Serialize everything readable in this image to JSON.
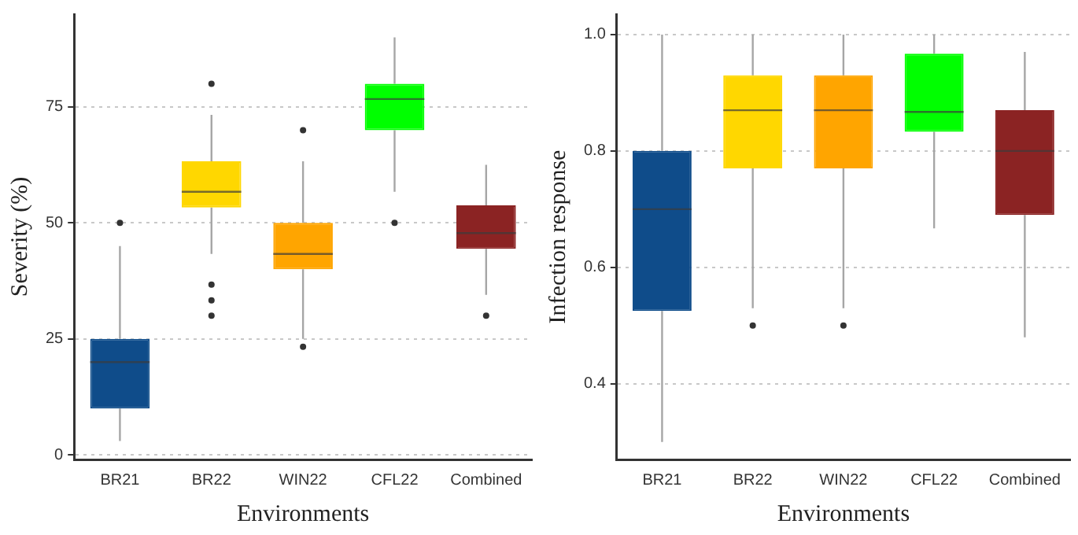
{
  "chart_data": [
    {
      "type": "box",
      "xlabel": "Environments",
      "ylabel": "Severity (%)",
      "categories": [
        "BR21",
        "BR22",
        "WIN22",
        "CFL22",
        "Combined"
      ],
      "colors": [
        "#0f4c8a",
        "#ffd700",
        "#ffa500",
        "#00ff00",
        "#8b2323"
      ],
      "ylim": [
        -1,
        95
      ],
      "yticks": [
        0,
        25,
        50,
        75
      ],
      "grid": "y",
      "legend": false,
      "boxes": [
        {
          "low": 3,
          "q1": 10,
          "median": 20,
          "q3": 25,
          "high": 45,
          "outliers": [
            50
          ]
        },
        {
          "low": 43.3,
          "q1": 53.3,
          "median": 56.7,
          "q3": 63.3,
          "high": 73.3,
          "outliers": [
            80,
            36.7,
            33.3,
            30
          ]
        },
        {
          "low": 25,
          "q1": 40,
          "median": 43.3,
          "q3": 50,
          "high": 63.3,
          "outliers": [
            70,
            23.3
          ]
        },
        {
          "low": 56.7,
          "q1": 70,
          "median": 76.7,
          "q3": 80,
          "high": 90,
          "outliers": [
            50
          ]
        },
        {
          "low": 34.5,
          "q1": 44.4,
          "median": 47.8,
          "q3": 53.8,
          "high": 62.5,
          "outliers": [
            30
          ]
        }
      ]
    },
    {
      "type": "box",
      "xlabel": "Environments",
      "ylabel": "Infection response",
      "categories": [
        "BR21",
        "BR22",
        "WIN22",
        "CFL22",
        "Combined"
      ],
      "colors": [
        "#0f4c8a",
        "#ffd700",
        "#ffa500",
        "#00ff00",
        "#8b2323"
      ],
      "ylim": [
        0.27,
        1.035
      ],
      "yticks": [
        0.4,
        0.6,
        0.8,
        {
          "value": 1.0,
          "label": "1.0"
        }
      ],
      "grid": "y",
      "legend": false,
      "boxes": [
        {
          "low": 0.3,
          "q1": 0.525,
          "median": 0.7,
          "q3": 0.8,
          "high": 1.0
        },
        {
          "low": 0.53,
          "q1": 0.77,
          "median": 0.87,
          "q3": 0.93,
          "high": 1.0,
          "outliers": [
            0.5
          ]
        },
        {
          "low": 0.53,
          "q1": 0.77,
          "median": 0.87,
          "q3": 0.93,
          "high": 1.0,
          "outliers": [
            0.5
          ]
        },
        {
          "low": 0.667,
          "q1": 0.833,
          "median": 0.867,
          "q3": 0.967,
          "high": 1.0
        },
        {
          "low": 0.48,
          "q1": 0.69,
          "median": 0.8,
          "q3": 0.87,
          "high": 0.97
        }
      ]
    }
  ]
}
